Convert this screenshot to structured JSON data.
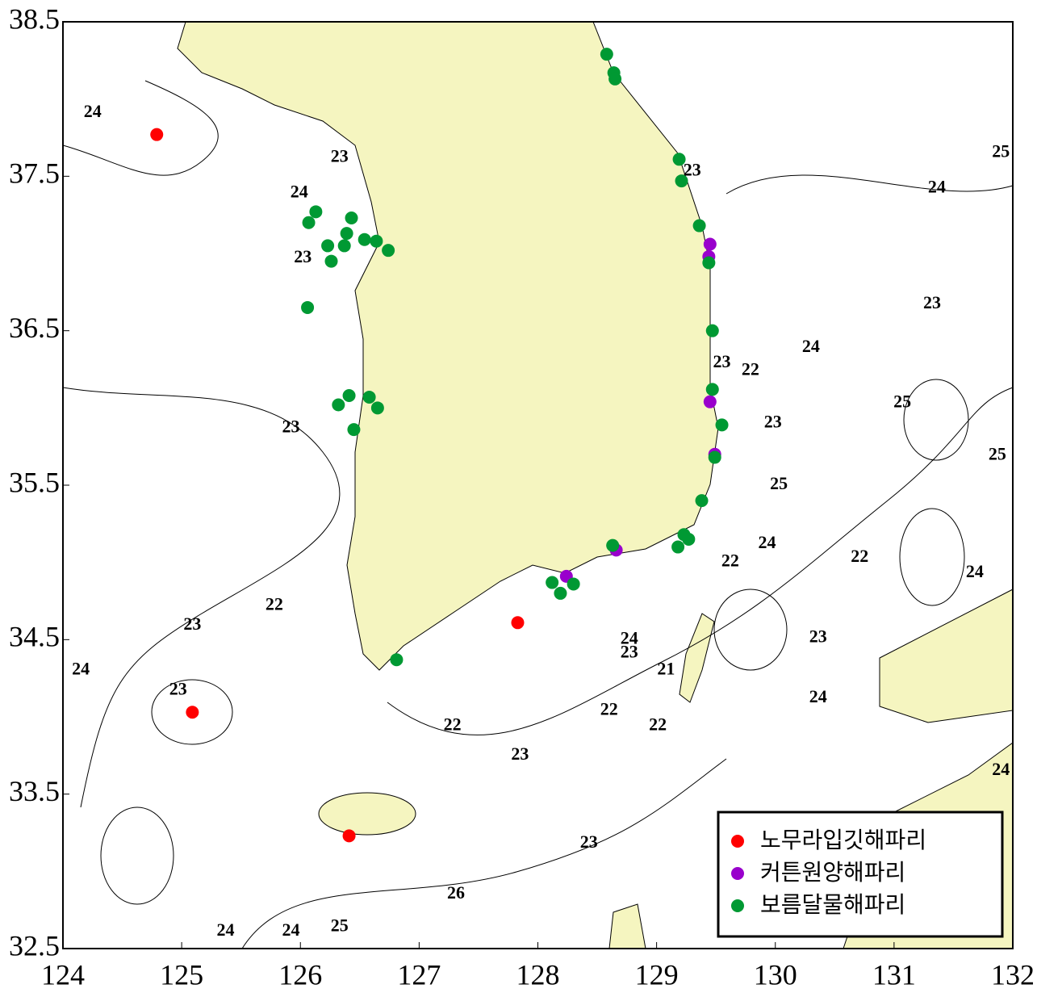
{
  "chart_data": {
    "type": "scatter",
    "xlim": [
      124,
      132
    ],
    "ylim": [
      32.5,
      38.5
    ],
    "xticks": [
      124,
      125,
      126,
      127,
      128,
      129,
      130,
      131,
      132
    ],
    "yticks": [
      32.5,
      33.5,
      34.5,
      35.5,
      36.5,
      37.5,
      38.5
    ],
    "legend": "lower right",
    "series": [
      {
        "name": "노무라입깃해파리",
        "color": "#ff0000",
        "x": [
          124.79,
          125.09,
          127.83,
          126.41
        ],
        "values": [
          37.77,
          34.03,
          34.61,
          33.23
        ]
      },
      {
        "name": "커튼원양해파리",
        "color": "#9900cc",
        "x": [
          129.45,
          129.44,
          129.45,
          129.49,
          128.66,
          128.24
        ],
        "values": [
          37.06,
          36.98,
          36.04,
          35.7,
          35.08,
          34.91
        ]
      },
      {
        "name": "보름달물해파리",
        "color": "#009933",
        "x": [
          128.58,
          128.64,
          128.65,
          129.19,
          129.21,
          129.36,
          129.44,
          129.47,
          129.47,
          129.55,
          129.49,
          129.38,
          129.23,
          129.27,
          129.18,
          128.63,
          128.12,
          128.19,
          128.3,
          126.81,
          126.45,
          126.65,
          126.58,
          126.41,
          126.32,
          126.06,
          126.13,
          126.07,
          126.43,
          126.23,
          126.39,
          126.37,
          126.26,
          126.54,
          126.64,
          126.74
        ],
        "values": [
          38.29,
          38.17,
          38.13,
          37.61,
          37.47,
          37.18,
          36.94,
          36.5,
          36.12,
          35.89,
          35.68,
          35.4,
          35.18,
          35.15,
          35.1,
          35.11,
          34.87,
          34.8,
          34.86,
          34.37,
          35.86,
          36.0,
          36.07,
          36.08,
          36.02,
          36.65,
          37.27,
          37.2,
          37.23,
          37.05,
          37.13,
          37.05,
          36.95,
          37.09,
          37.08,
          37.02
        ]
      }
    ],
    "contour_labels": {
      "x": [
        124.25,
        126.33,
        125.99,
        126.02,
        125.92,
        125.78,
        125.09,
        124.15,
        124.97,
        127.28,
        127.85,
        128.6,
        128.77,
        128.77,
        129.08,
        129.01,
        128.43,
        127.31,
        126.33,
        125.37,
        125.92,
        129.62,
        129.93,
        130.03,
        129.98,
        129.79,
        130.3,
        131.32,
        131.36,
        131.9,
        131.07,
        131.87,
        130.71,
        131.68,
        130.36,
        130.36,
        131.9,
        129.3,
        129.55
      ],
      "y": [
        37.91,
        37.62,
        37.39,
        36.97,
        35.87,
        34.72,
        34.59,
        34.3,
        34.17,
        33.94,
        33.75,
        34.04,
        34.5,
        34.41,
        34.3,
        33.94,
        33.18,
        32.85,
        32.64,
        32.61,
        32.61,
        35.0,
        35.12,
        35.5,
        35.9,
        36.24,
        36.39,
        36.67,
        37.42,
        37.65,
        36.03,
        35.69,
        35.03,
        34.93,
        34.51,
        34.12,
        33.65,
        37.53,
        36.29
      ],
      "values": [
        24,
        23,
        24,
        23,
        23,
        22,
        23,
        24,
        23,
        22,
        23,
        22,
        24,
        23,
        21,
        22,
        23,
        26,
        25,
        24,
        24,
        22,
        24,
        25,
        23,
        22,
        24,
        23,
        24,
        25,
        25,
        25,
        22,
        24,
        23,
        24,
        24,
        23,
        23
      ]
    }
  }
}
